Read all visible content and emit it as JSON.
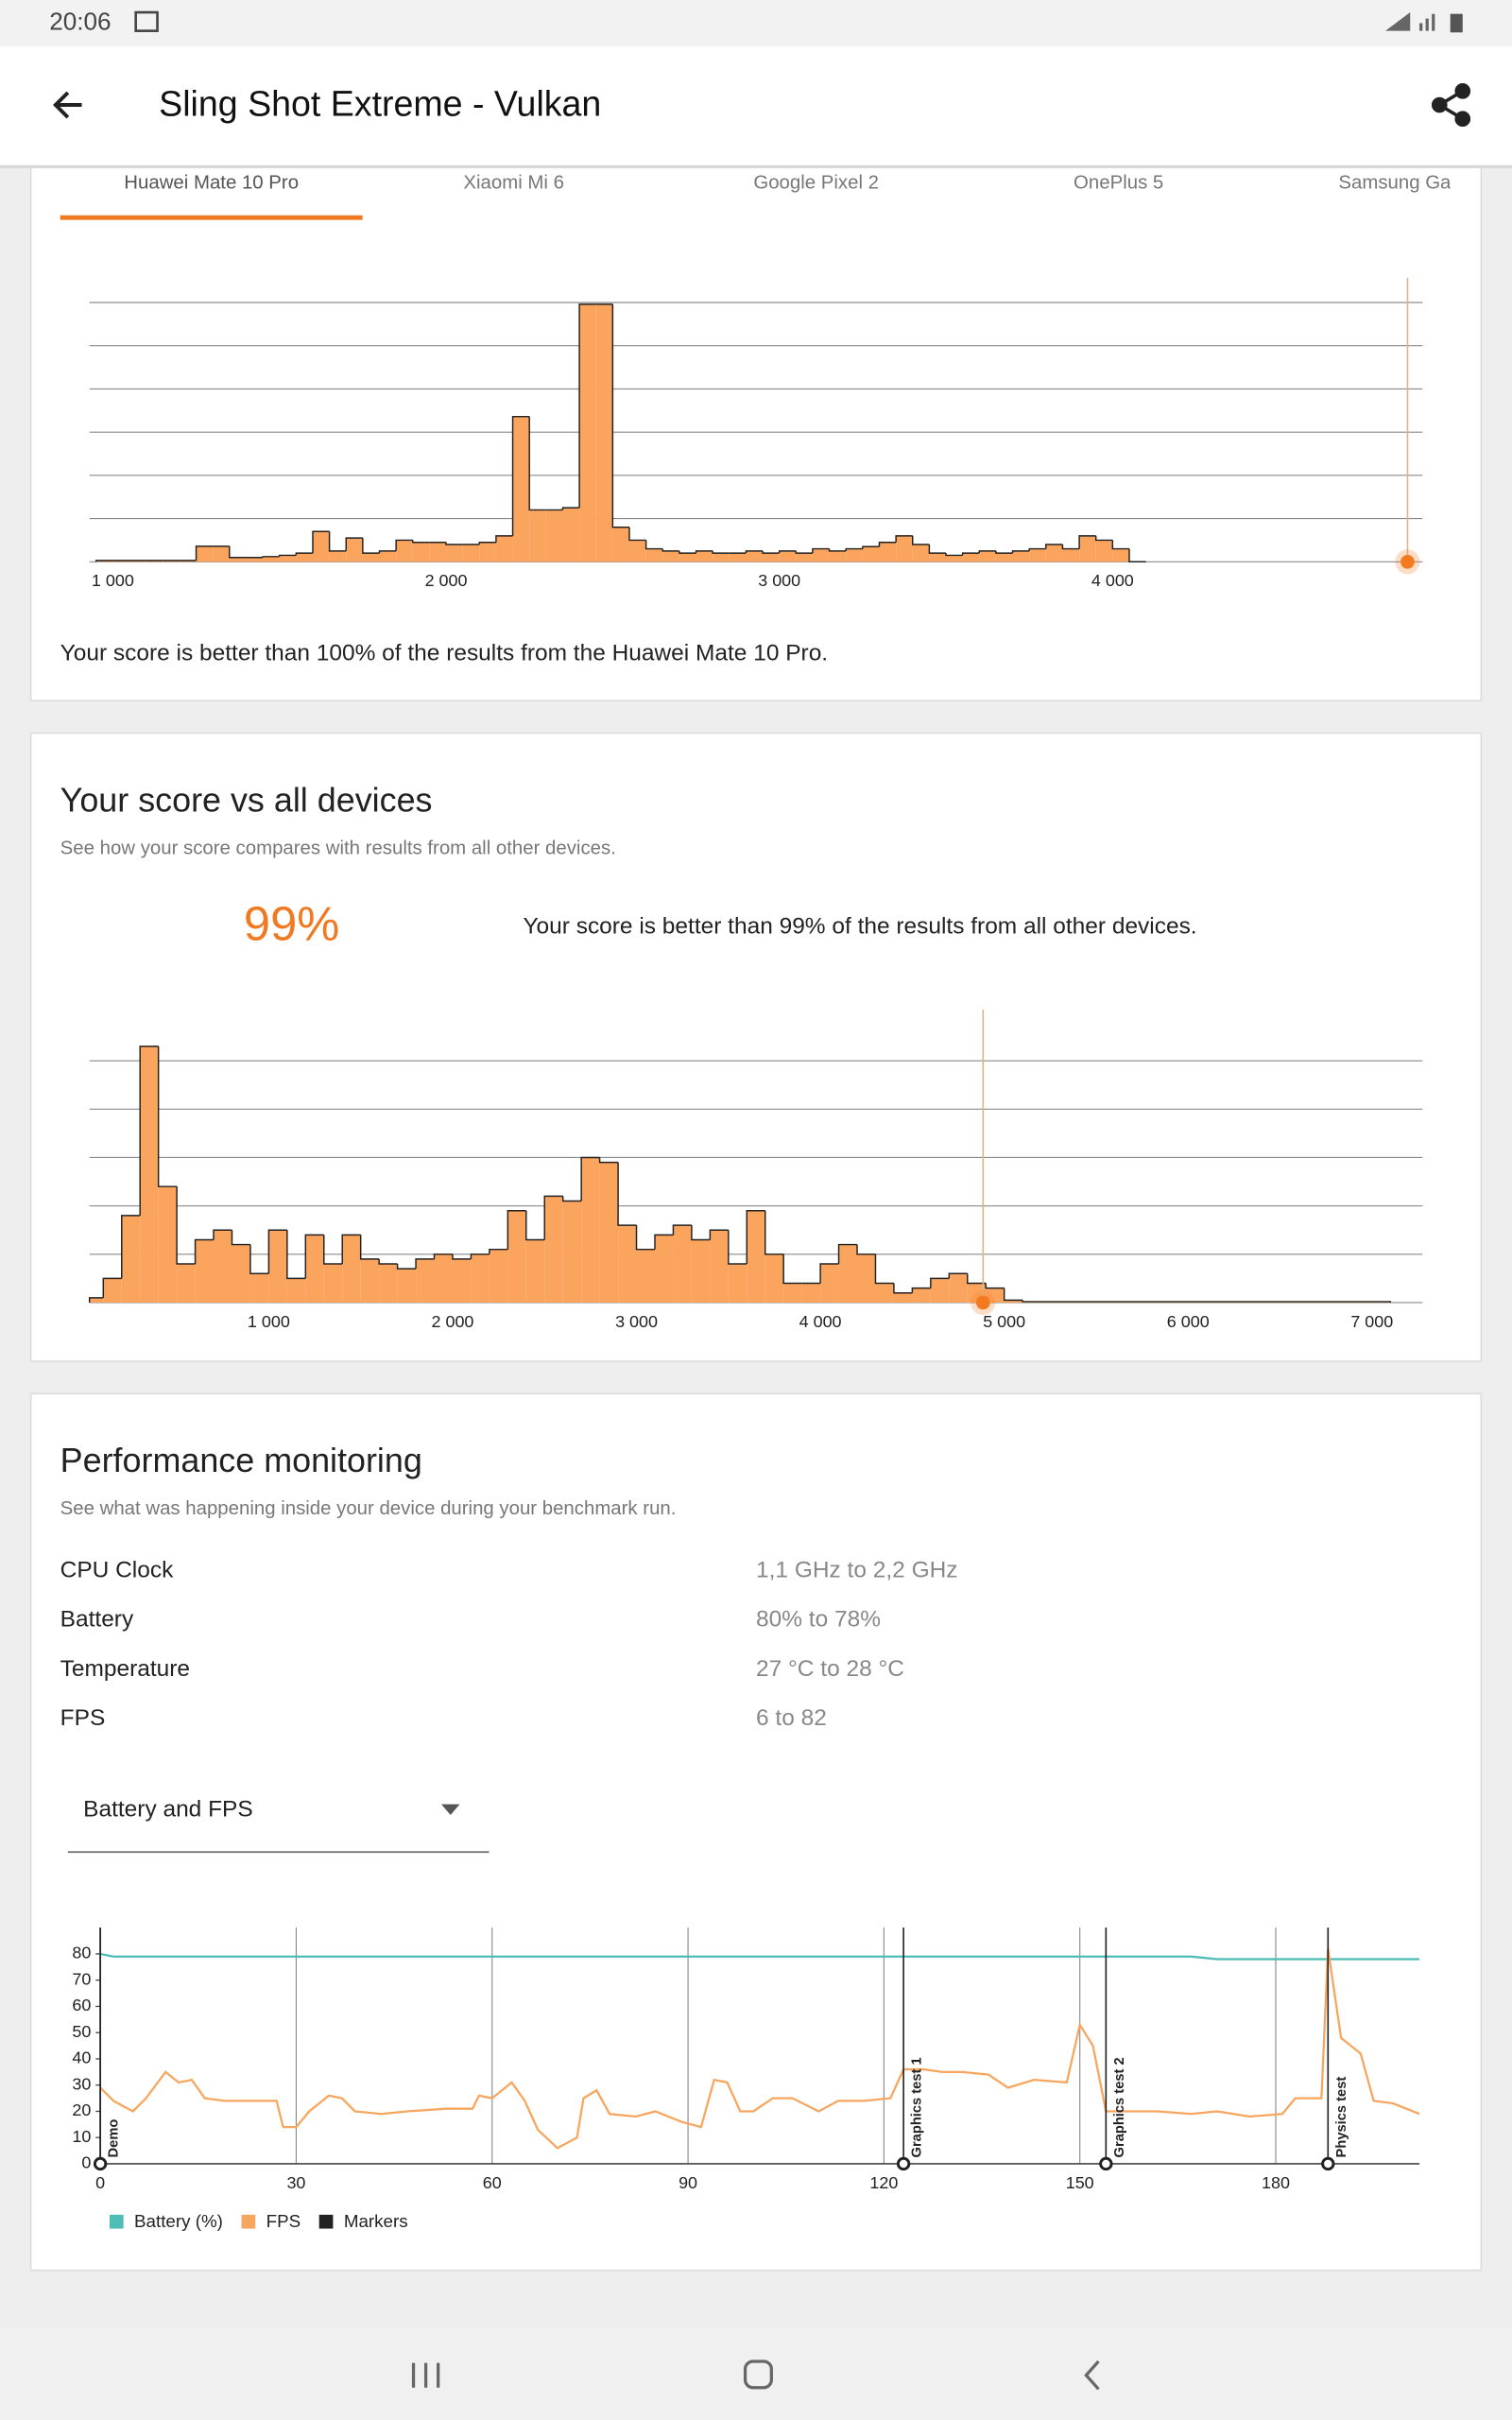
{
  "status_bar": {
    "time": "20:06"
  },
  "app_bar": {
    "title": "Sling Shot Extreme - Vulkan"
  },
  "device_tabs": {
    "tabs": [
      "Huawei Mate 10 Pro",
      "Xiaomi Mi 6",
      "Google Pixel 2",
      "OnePlus 5",
      "Samsung Galaxy S"
    ],
    "selected": 0
  },
  "device_section": {
    "summary": "Your score is better than 100% of the results from the Huawei Mate 10 Pro."
  },
  "all_devices_section": {
    "title": "Your score vs all devices",
    "subtitle": "See how your score compares with results from all other devices.",
    "percentile": "99%",
    "summary": "Your score is better than 99% of the results from all other devices."
  },
  "performance_section": {
    "title": "Performance monitoring",
    "subtitle": "See what was happening inside your device during your benchmark run.",
    "rows": [
      [
        "CPU Clock",
        "1,1 GHz to 2,2 GHz"
      ],
      [
        "Battery",
        "80% to 78%"
      ],
      [
        "Temperature",
        "27 °C to 28 °C"
      ],
      [
        "FPS",
        "6 to 82"
      ]
    ],
    "dropdown": "Battery and FPS"
  },
  "chart_data": [
    {
      "type": "histogram",
      "color": "#fba45e",
      "score": 4885,
      "score_color": "#f37a1f",
      "grid": true,
      "xlim": [
        930,
        4930
      ],
      "ylim": [
        0,
        6.5
      ],
      "yticks": [
        0,
        1,
        2,
        3,
        4,
        5,
        6
      ],
      "xticks": [
        {
          "value": 1000,
          "label": "1 000"
        },
        {
          "value": 2000,
          "label": "2 000"
        },
        {
          "value": 3000,
          "label": "3 000"
        },
        {
          "value": 4000,
          "label": "4 000"
        }
      ],
      "bins": [
        950,
        1000,
        1050,
        1100,
        1150,
        1200,
        1250,
        1300,
        1350,
        1400,
        1450,
        1500,
        1550,
        1600,
        1650,
        1700,
        1750,
        1800,
        1850,
        1900,
        1950,
        2000,
        2050,
        2100,
        2150,
        2200,
        2250,
        2300,
        2350,
        2400,
        2450,
        2500,
        2550,
        2600,
        2650,
        2700,
        2750,
        2800,
        2850,
        2900,
        2950,
        3000,
        3050,
        3100,
        3150,
        3200,
        3250,
        3300,
        3350,
        3400,
        3450,
        3500,
        3550,
        3600,
        3650,
        3700,
        3750,
        3800,
        3850,
        3900,
        3950,
        4000,
        4050,
        4100
      ],
      "values": [
        0.03,
        0.03,
        0.03,
        0.03,
        0.03,
        0.03,
        0.36,
        0.36,
        0.1,
        0.1,
        0.12,
        0.15,
        0.2,
        0.7,
        0.25,
        0.55,
        0.2,
        0.25,
        0.5,
        0.45,
        0.45,
        0.4,
        0.4,
        0.45,
        0.6,
        3.36,
        1.2,
        1.2,
        1.25,
        5.96,
        5.96,
        0.8,
        0.5,
        0.3,
        0.25,
        0.2,
        0.25,
        0.2,
        0.2,
        0.25,
        0.2,
        0.25,
        0.2,
        0.3,
        0.25,
        0.3,
        0.35,
        0.45,
        0.6,
        0.4,
        0.2,
        0.15,
        0.2,
        0.25,
        0.2,
        0.25,
        0.3,
        0.4,
        0.3,
        0.6,
        0.5,
        0.3,
        0
      ]
    },
    {
      "type": "histogram",
      "color": "#fba45e",
      "score": 4885,
      "score_color": "#f37a1f",
      "grid": true,
      "xlim": [
        25,
        7275
      ],
      "ylim": [
        0,
        6
      ],
      "yticks": [
        0,
        1,
        2,
        3,
        4,
        5
      ],
      "xticks": [
        {
          "value": 1000,
          "label": "1 000"
        },
        {
          "value": 2000,
          "label": "2 000"
        },
        {
          "value": 3000,
          "label": "3 000"
        },
        {
          "value": 4000,
          "label": "4 000"
        },
        {
          "value": 5000,
          "label": "5 000"
        },
        {
          "value": 6000,
          "label": "6 000"
        },
        {
          "value": 7000,
          "label": "7 000"
        }
      ],
      "bins": [
        25,
        100,
        200,
        300,
        400,
        500,
        600,
        700,
        800,
        900,
        1000,
        1100,
        1200,
        1300,
        1400,
        1500,
        1600,
        1700,
        1800,
        1900,
        2000,
        2100,
        2200,
        2300,
        2400,
        2500,
        2600,
        2700,
        2800,
        2900,
        3000,
        3100,
        3200,
        3300,
        3400,
        3500,
        3600,
        3700,
        3800,
        3900,
        4000,
        4100,
        4200,
        4300,
        4400,
        4500,
        4600,
        4700,
        4800,
        4900,
        5000,
        5100,
        7100
      ],
      "values": [
        0.1,
        0.5,
        1.8,
        5.3,
        2.4,
        0.8,
        1.3,
        1.5,
        1.2,
        0.6,
        1.5,
        0.5,
        1.4,
        0.8,
        1.4,
        0.9,
        0.8,
        0.7,
        0.9,
        1.0,
        0.9,
        1.0,
        1.1,
        1.9,
        1.3,
        2.2,
        2.1,
        3.0,
        2.9,
        1.6,
        1.1,
        1.4,
        1.6,
        1.3,
        1.5,
        0.8,
        1.9,
        1.0,
        0.4,
        0.4,
        0.8,
        1.2,
        1.0,
        0.4,
        0.2,
        0.3,
        0.5,
        0.6,
        0.4,
        0.3,
        0.05,
        0.02
      ]
    },
    {
      "type": "line",
      "grid": true,
      "xlim": [
        0,
        202
      ],
      "ylim": [
        0,
        90
      ],
      "xticks": [
        0,
        30,
        60,
        90,
        120,
        150,
        180
      ],
      "yticks": [
        0,
        10,
        20,
        30,
        40,
        50,
        60,
        70,
        80
      ],
      "x": [
        0,
        2,
        5,
        7,
        10,
        12,
        14,
        16,
        19,
        22,
        27,
        28,
        30,
        32,
        35,
        37,
        39,
        43,
        47,
        53,
        57,
        58,
        60,
        63,
        65,
        67,
        70,
        73,
        74,
        76,
        78,
        82,
        85,
        89,
        92,
        94,
        96,
        98,
        100,
        103,
        106,
        110,
        113,
        117,
        121,
        123,
        126,
        129,
        132,
        136,
        139,
        143,
        148,
        150,
        152,
        154,
        157,
        162,
        167,
        171,
        176,
        181,
        183,
        187,
        188,
        190,
        193,
        195,
        198,
        202
      ],
      "series": [
        {
          "name": "Battery (%)",
          "color": "#4dbdb5",
          "values": [
            80,
            79,
            79,
            79,
            79,
            79,
            79,
            79,
            79,
            79,
            79,
            79,
            79,
            79,
            79,
            79,
            79,
            79,
            79,
            79,
            79,
            79,
            79,
            79,
            79,
            79,
            79,
            79,
            79,
            79,
            79,
            79,
            79,
            79,
            79,
            79,
            79,
            79,
            79,
            79,
            79,
            79,
            79,
            79,
            79,
            79,
            79,
            79,
            79,
            79,
            79,
            79,
            79,
            79,
            79,
            79,
            79,
            79,
            79,
            78,
            78,
            78,
            78,
            78,
            78,
            78,
            78,
            78,
            78,
            78
          ]
        },
        {
          "name": "FPS",
          "color": "#f7a65f",
          "values": [
            29,
            24,
            20,
            25,
            35,
            31,
            32,
            25,
            24,
            24,
            24,
            14,
            14,
            20,
            26,
            25,
            20,
            19,
            20,
            21,
            21,
            26,
            25,
            31,
            24,
            13,
            6,
            10,
            25,
            28,
            19,
            18,
            20,
            16,
            14,
            32,
            31,
            20,
            20,
            25,
            25,
            20,
            24,
            24,
            25,
            36,
            36,
            35,
            35,
            34,
            29,
            32,
            31,
            53,
            45,
            20,
            20,
            20,
            19,
            20,
            18,
            19,
            25,
            25,
            82,
            48,
            42,
            24,
            23,
            19
          ]
        }
      ],
      "markers": {
        "name": "Markers",
        "color": "#222222",
        "x": [
          0,
          123,
          154,
          188
        ],
        "labels": [
          "Demo",
          "Graphics test 1",
          "Graphics test 2",
          "Physics test"
        ]
      }
    }
  ]
}
